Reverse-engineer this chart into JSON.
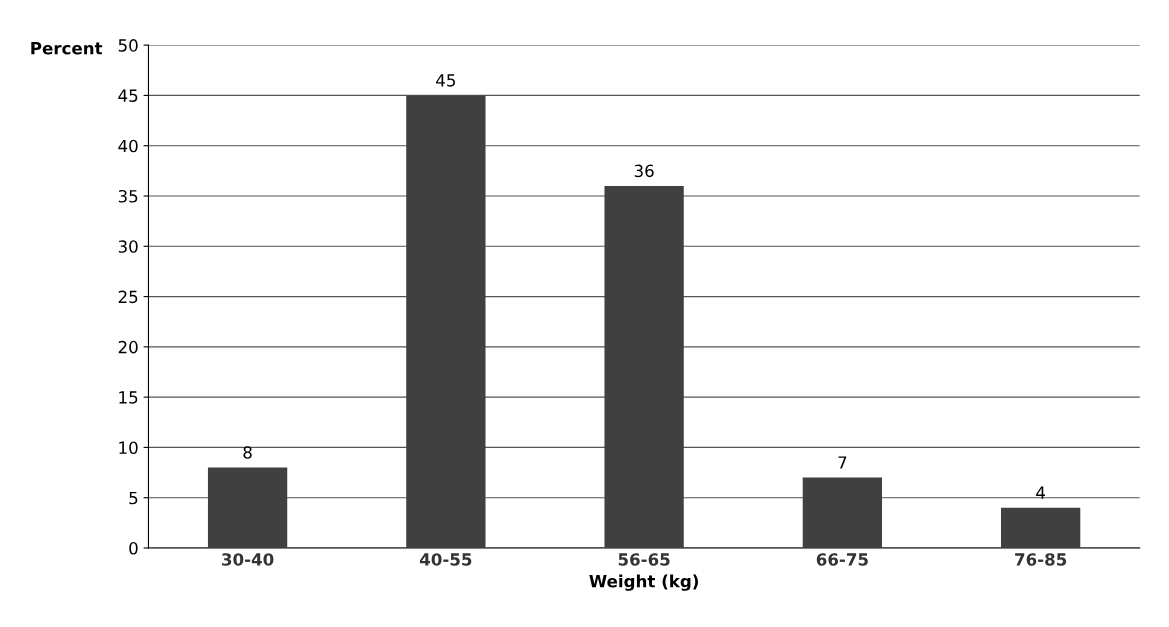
{
  "chart_data": {
    "type": "bar",
    "xlabel": "Weight (kg)",
    "ylabel": "Percent",
    "categories": [
      "30-40",
      "40-55",
      "56-65",
      "66-75",
      "76-85"
    ],
    "values": [
      8,
      45,
      36,
      7,
      4
    ],
    "color": "#404040",
    "ylim": [
      0,
      50
    ],
    "yticks": [
      0,
      5,
      10,
      15,
      20,
      25,
      30,
      35,
      40,
      45,
      50
    ],
    "grid": "y",
    "data_labels": true
  }
}
